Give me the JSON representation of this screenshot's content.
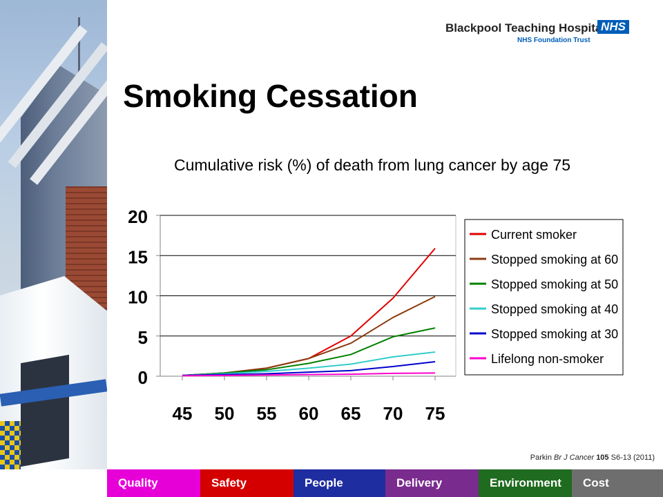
{
  "header": {
    "org_name": "Blackpool Teaching Hospitals",
    "nhs_badge": "NHS",
    "org_sub": "NHS Foundation Trust"
  },
  "slide": {
    "title": "Smoking Cessation"
  },
  "chart_data": {
    "type": "line",
    "title": "Cumulative risk (%) of death from lung cancer by age 75",
    "xlabel": "",
    "ylabel": "",
    "x": [
      45,
      50,
      55,
      60,
      65,
      70,
      75
    ],
    "ylim": [
      0,
      20
    ],
    "yticks": [
      0,
      5,
      10,
      15,
      20
    ],
    "grid": true,
    "legend_position": "right",
    "series": [
      {
        "name": "Current smoker",
        "color": "#e00000",
        "values": [
          0.1,
          0.4,
          1.0,
          2.2,
          5.0,
          9.7,
          15.9
        ]
      },
      {
        "name": "Stopped smoking at 60",
        "color": "#8b3a0f",
        "values": [
          0.1,
          0.4,
          1.0,
          2.2,
          4.1,
          7.3,
          9.9
        ]
      },
      {
        "name": "Stopped smoking at 50",
        "color": "#008000",
        "values": [
          0.1,
          0.4,
          0.8,
          1.6,
          2.7,
          4.9,
          6.0
        ]
      },
      {
        "name": "Stopped smoking at 40",
        "color": "#33cccc",
        "values": [
          0.1,
          0.3,
          0.6,
          1.0,
          1.5,
          2.4,
          3.0
        ]
      },
      {
        "name": "Stopped smoking at 30",
        "color": "#0000cc",
        "values": [
          0.1,
          0.2,
          0.3,
          0.5,
          0.7,
          1.2,
          1.8
        ]
      },
      {
        "name": "Lifelong non-smoker",
        "color": "#ff00cc",
        "values": [
          0.05,
          0.1,
          0.15,
          0.2,
          0.25,
          0.35,
          0.4
        ]
      }
    ]
  },
  "citation": {
    "author": "Parkin",
    "journal": "Br J Cancer",
    "volume": "105",
    "pages_year": "S6-13 (2011)"
  },
  "nav": [
    {
      "label": "Quality",
      "color": "#e600d7"
    },
    {
      "label": "Safety",
      "color": "#d40000"
    },
    {
      "label": "People",
      "color": "#1e2da0"
    },
    {
      "label": "Delivery",
      "color": "#7a2c8e"
    },
    {
      "label": "Environment",
      "color": "#1f6b1f"
    },
    {
      "label": "Cost",
      "color": "#6e6e6e"
    }
  ]
}
